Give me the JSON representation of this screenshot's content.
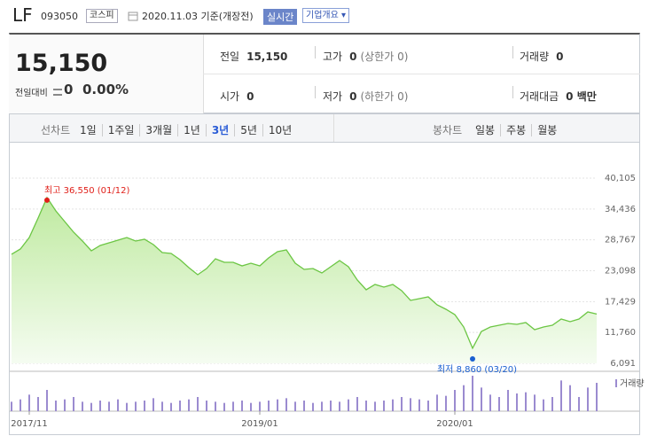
{
  "header": {
    "name": "LF",
    "code": "093050",
    "market": "코스피",
    "date": "2020.11.03 기준(개장전)",
    "realtime": "실시간",
    "company_info": "기업개요"
  },
  "quote": {
    "price": "15,150",
    "change_label": "전일대비",
    "change": "0",
    "change_rate": "0.00%"
  },
  "stats": [
    {
      "label": "전일",
      "value": "15,150"
    },
    {
      "label": "고가",
      "value": "0",
      "note": "(상한가 0)"
    },
    {
      "label": "거래량",
      "value": "0"
    },
    {
      "label": "시가",
      "value": "0"
    },
    {
      "label": "저가",
      "value": "0",
      "note": "(하한가 0)"
    },
    {
      "label": "거래대금",
      "value": "0 백만"
    }
  ],
  "tabs": {
    "line_label": "선차트",
    "line": [
      "1일",
      "1주일",
      "3개월",
      "1년",
      "3년",
      "5년",
      "10년"
    ],
    "selected": 4,
    "candle_label": "봉차트",
    "candle": [
      "일봉",
      "주봉",
      "월봉"
    ]
  },
  "chart_data": {
    "type": "area",
    "categories": [
      null,
      null,
      "2017/11",
      null,
      null,
      null,
      null,
      null,
      null,
      null,
      null,
      null,
      null,
      null,
      null,
      null,
      null,
      null,
      null,
      null,
      null,
      null,
      null,
      null,
      null,
      null,
      null,
      null,
      "2019/01",
      null,
      null,
      null,
      null,
      null,
      null,
      null,
      null,
      null,
      null,
      null,
      null,
      null,
      null,
      null,
      null,
      null,
      null,
      null,
      null,
      null,
      "2020/01",
      null,
      null,
      null,
      null,
      null,
      null,
      null,
      null,
      null,
      null,
      null,
      null,
      null,
      null,
      null,
      null
    ],
    "values": [
      26110,
      27090,
      29200,
      32780,
      36550,
      34080,
      32130,
      30180,
      28550,
      26760,
      27740,
      28220,
      28710,
      29200,
      28550,
      28880,
      27900,
      26430,
      26270,
      25130,
      23670,
      22370,
      23500,
      25300,
      24640,
      24640,
      23990,
      24480,
      23990,
      25460,
      26600,
      26920,
      24480,
      23340,
      23500,
      22690,
      23830,
      24970,
      23830,
      21390,
      19600,
      20580,
      20090,
      20580,
      19440,
      17650,
      17970,
      18300,
      16830,
      16020,
      15040,
      12760,
      8860,
      11950,
      12760,
      13090,
      13410,
      13250,
      13580,
      12280,
      12760,
      13090,
      14230,
      13740,
      14230,
      15530,
      15150
    ],
    "color": "#6cc644",
    "ylim": [
      6091,
      40105
    ],
    "yticks": [
      {
        "value": 40105,
        "label": "40,105"
      },
      {
        "value": 34436,
        "label": "34,436"
      },
      {
        "value": 28767,
        "label": "28,767"
      },
      {
        "value": 23098,
        "label": "23,098"
      },
      {
        "value": 17429,
        "label": "17,429"
      },
      {
        "value": 11760,
        "label": "11,760"
      },
      {
        "value": 6091,
        "label": "6,091"
      }
    ],
    "grid": true,
    "annotations": {
      "high": "최고 36,550 (01/12)",
      "low": "최저 8,860 (03/20)"
    },
    "volume": {
      "name": "거래량",
      "color": "#9b8bd0",
      "values": [
        8,
        10,
        14,
        12,
        18,
        9,
        10,
        12,
        8,
        7,
        9,
        8,
        10,
        7,
        8,
        9,
        11,
        8,
        7,
        9,
        10,
        12,
        9,
        8,
        7,
        8,
        9,
        7,
        8,
        9,
        10,
        11,
        8,
        9,
        7,
        8,
        9,
        8,
        10,
        12,
        9,
        8,
        9,
        10,
        12,
        11,
        10,
        9,
        14,
        13,
        18,
        22,
        30,
        20,
        14,
        12,
        18,
        15,
        16,
        14,
        10,
        12,
        26,
        22,
        12,
        20,
        24
      ]
    }
  }
}
